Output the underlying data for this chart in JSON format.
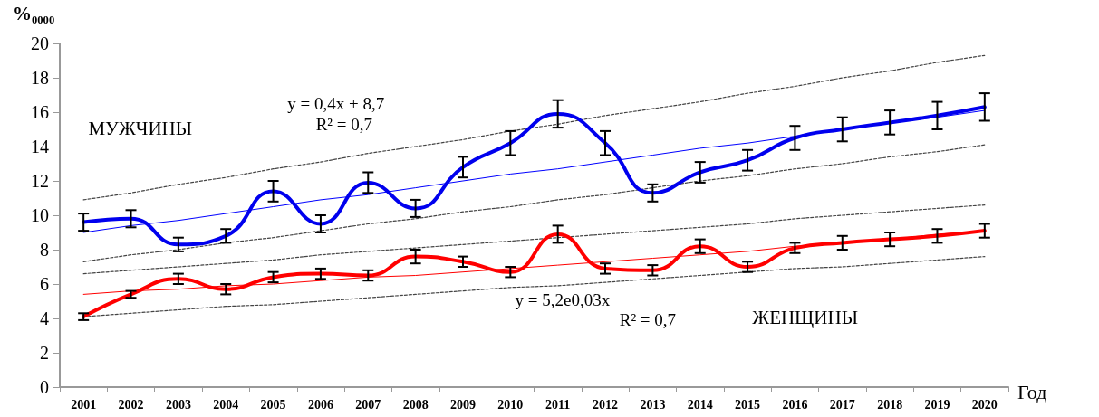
{
  "chart_data": {
    "type": "line",
    "ylabel": "%₀₀₀₀",
    "xlabel": "Год",
    "categories": [
      "2001",
      "2002",
      "2003",
      "2004",
      "2005",
      "2006",
      "2007",
      "2008",
      "2009",
      "2010",
      "2011",
      "2012",
      "2013",
      "2014",
      "2015",
      "2016",
      "2017",
      "2018",
      "2019",
      "2020"
    ],
    "series": [
      {
        "color": "#0000ee",
        "values": [
          9.6,
          9.8,
          8.3,
          8.8,
          11.4,
          9.5,
          11.9,
          10.4,
          12.8,
          14.2,
          15.9,
          14.2,
          11.3,
          12.5,
          13.2,
          14.5,
          15.0,
          15.4,
          15.8,
          16.3
        ],
        "errors": [
          0.5,
          0.5,
          0.4,
          0.4,
          0.6,
          0.5,
          0.6,
          0.5,
          0.6,
          0.7,
          0.8,
          0.7,
          0.5,
          0.6,
          0.6,
          0.7,
          0.7,
          0.7,
          0.8,
          0.8
        ]
      },
      {
        "color": "#ff0000",
        "values": [
          4.1,
          5.4,
          6.3,
          5.7,
          6.4,
          6.6,
          6.5,
          7.6,
          7.3,
          6.7,
          8.9,
          6.9,
          6.8,
          8.2,
          7.0,
          8.1,
          8.4,
          8.6,
          8.8,
          9.1
        ],
        "errors": [
          0.2,
          0.2,
          0.3,
          0.3,
          0.3,
          0.3,
          0.3,
          0.4,
          0.3,
          0.3,
          0.5,
          0.3,
          0.3,
          0.4,
          0.3,
          0.3,
          0.4,
          0.4,
          0.4,
          0.4
        ]
      },
      {
        "color": "#0000ff",
        "values": [
          9.0,
          9.4,
          9.7,
          10.1,
          10.5,
          10.9,
          11.2,
          11.6,
          12.0,
          12.4,
          12.7,
          13.1,
          13.5,
          13.9,
          14.2,
          14.6,
          15.0,
          15.4,
          15.7,
          16.1
        ]
      },
      {
        "color": "#ff0000",
        "values": [
          5.4,
          5.6,
          5.7,
          5.9,
          6.0,
          6.2,
          6.4,
          6.5,
          6.7,
          6.9,
          7.1,
          7.3,
          7.5,
          7.7,
          7.9,
          8.2,
          8.4,
          8.6,
          8.9,
          9.1
        ]
      },
      {
        "color": "#444444",
        "line_style": "dashed",
        "values": [
          10.9,
          11.3,
          11.8,
          12.2,
          12.7,
          13.1,
          13.6,
          14.0,
          14.4,
          14.9,
          15.3,
          15.8,
          16.2,
          16.6,
          17.1,
          17.5,
          18.0,
          18.4,
          18.9,
          19.3
        ]
      },
      {
        "color": "#444444",
        "line_style": "dashed",
        "values": [
          7.3,
          7.7,
          8.0,
          8.4,
          8.7,
          9.1,
          9.5,
          9.8,
          10.2,
          10.5,
          10.9,
          11.2,
          11.6,
          12.0,
          12.3,
          12.7,
          13.0,
          13.4,
          13.7,
          14.1
        ]
      },
      {
        "color": "#444444",
        "line_style": "dashed",
        "values": [
          6.6,
          6.8,
          7.0,
          7.2,
          7.4,
          7.7,
          7.9,
          8.1,
          8.3,
          8.5,
          8.7,
          8.9,
          9.1,
          9.3,
          9.5,
          9.8,
          10.0,
          10.2,
          10.4,
          10.6
        ]
      },
      {
        "color": "#444444",
        "line_style": "dashed",
        "values": [
          4.1,
          4.3,
          4.5,
          4.7,
          4.8,
          5.0,
          5.2,
          5.4,
          5.6,
          5.8,
          5.9,
          6.1,
          6.3,
          6.5,
          6.7,
          6.9,
          7.0,
          7.2,
          7.4,
          7.6
        ]
      }
    ],
    "annotations": [
      "МУЖЧИНЫ",
      "y = 0,4x + 8,7",
      "R² = 0,7",
      "y = 5,2e0,03x",
      "R² = 0,7",
      "ЖЕНЩИНЫ"
    ],
    "ylim": [
      0,
      20
    ],
    "yticks": [
      0,
      2,
      4,
      6,
      8,
      10,
      12,
      14,
      16,
      18,
      20
    ],
    "grid": false,
    "marker": "none"
  }
}
